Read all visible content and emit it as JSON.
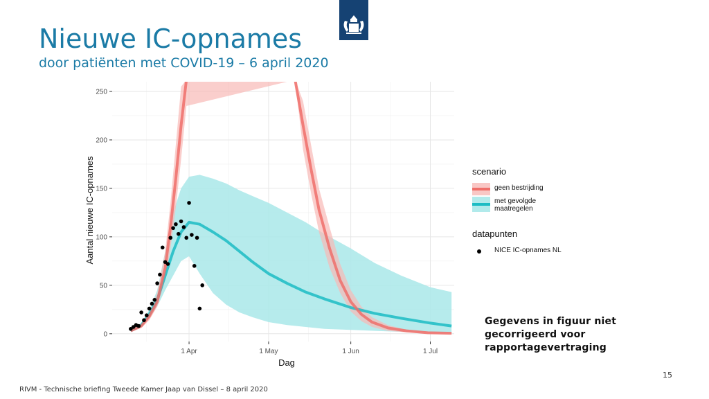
{
  "slide": {
    "title": "Nieuwe IC-opnames",
    "subtitle": "door patiënten met COVID-19 – 6 april 2020",
    "note_lines": [
      "Gegevens in figuur niet",
      "gecorrigeerd voor",
      "rapportagevertraging"
    ],
    "page_number": "15",
    "footer": "RIVM - Technische briefing Tweede Kamer Jaap van Dissel – 8 april 2020",
    "logo_icon": "rijksoverheid-coat-of-arms-icon"
  },
  "colors": {
    "title": "#1b7ba6",
    "logo_bg": "#154273",
    "red_line": "#ef6f6a",
    "red_band": "#f8b9b6",
    "teal_line": "#1cbcc4",
    "teal_band": "#a9e8e9",
    "points": "#000000"
  },
  "chart_data": {
    "type": "line",
    "title": "",
    "xlabel": "Dag",
    "ylabel": "Aantal nieuwe IC-opnames",
    "x_ticks": [
      {
        "label": "1 Apr",
        "date": "2020-04-01"
      },
      {
        "label": "1 May",
        "date": "2020-05-01"
      },
      {
        "label": "1 Jun",
        "date": "2020-06-01"
      },
      {
        "label": "1 Jul",
        "date": "2020-07-01"
      }
    ],
    "y_ticks": [
      0,
      50,
      100,
      150,
      200,
      250
    ],
    "xlim": [
      "2020-03-03",
      "2020-07-10"
    ],
    "ylim": [
      -8,
      260
    ],
    "grid": true,
    "legend_position": "right",
    "legends": [
      {
        "title": "scenario",
        "entries": [
          {
            "label_lines": [
              "geen bestrijding"
            ],
            "series": "geen"
          },
          {
            "label_lines": [
              "met gevolgde",
              "maatregelen"
            ],
            "series": "met"
          }
        ]
      },
      {
        "title": "datapunten",
        "entries": [
          {
            "label_lines": [
              "NICE IC-opnames NL"
            ],
            "series": "points"
          }
        ]
      }
    ],
    "series": [
      {
        "name": "geen bestrijding",
        "key": "geen",
        "x": [
          "2020-03-10",
          "2020-03-14",
          "2020-03-17",
          "2020-03-20",
          "2020-03-23",
          "2020-03-25",
          "2020-03-27",
          "2020-03-29",
          "2020-03-31",
          "2020-05-11",
          "2020-05-14",
          "2020-05-17",
          "2020-05-20",
          "2020-05-24",
          "2020-05-28",
          "2020-06-01",
          "2020-06-05",
          "2020-06-09",
          "2020-06-15",
          "2020-06-22",
          "2020-06-30",
          "2020-07-09"
        ],
        "y": [
          3,
          8,
          18,
          33,
          68,
          110,
          160,
          215,
          262,
          262,
          215,
          170,
          128,
          88,
          55,
          33,
          20,
          12,
          6,
          3,
          1,
          0.5
        ],
        "lower": [
          2,
          6,
          14,
          28,
          55,
          88,
          130,
          180,
          235,
          262,
          190,
          145,
          105,
          68,
          42,
          23,
          13,
          7,
          3,
          1.5,
          0.5,
          0.2
        ],
        "upper": [
          4,
          10,
          22,
          42,
          85,
          135,
          195,
          255,
          262,
          262,
          240,
          195,
          150,
          110,
          72,
          45,
          28,
          17,
          9,
          4,
          2,
          1
        ]
      },
      {
        "name": "met gevolgde maatregelen",
        "key": "met",
        "x": [
          "2020-03-10",
          "2020-03-14",
          "2020-03-17",
          "2020-03-20",
          "2020-03-23",
          "2020-03-26",
          "2020-03-29",
          "2020-04-01",
          "2020-04-05",
          "2020-04-10",
          "2020-04-15",
          "2020-04-20",
          "2020-04-25",
          "2020-05-01",
          "2020-05-08",
          "2020-05-15",
          "2020-05-22",
          "2020-06-01",
          "2020-06-10",
          "2020-06-20",
          "2020-07-01",
          "2020-07-09"
        ],
        "y": [
          3,
          9,
          20,
          35,
          60,
          85,
          105,
          115,
          113,
          105,
          96,
          85,
          74,
          62,
          52,
          43,
          36,
          27,
          21,
          16,
          11,
          8
        ],
        "lower": [
          2,
          7,
          16,
          28,
          45,
          60,
          75,
          80,
          62,
          42,
          30,
          22,
          17,
          12,
          9,
          7,
          5,
          4,
          3,
          2,
          1,
          0.5
        ],
        "upper": [
          4,
          11,
          25,
          45,
          85,
          125,
          150,
          162,
          164,
          160,
          155,
          148,
          142,
          135,
          125,
          115,
          103,
          88,
          73,
          60,
          48,
          43
        ]
      },
      {
        "name": "NICE IC-opnames NL",
        "key": "points",
        "x": [
          "2020-03-10",
          "2020-03-11",
          "2020-03-12",
          "2020-03-13",
          "2020-03-14",
          "2020-03-15",
          "2020-03-16",
          "2020-03-17",
          "2020-03-18",
          "2020-03-19",
          "2020-03-20",
          "2020-03-21",
          "2020-03-22",
          "2020-03-23",
          "2020-03-24",
          "2020-03-25",
          "2020-03-26",
          "2020-03-27",
          "2020-03-28",
          "2020-03-29",
          "2020-03-30",
          "2020-03-31",
          "2020-04-01",
          "2020-04-02",
          "2020-04-03",
          "2020-04-04",
          "2020-04-05",
          "2020-04-06"
        ],
        "y": [
          5,
          7,
          9,
          8,
          22,
          14,
          19,
          26,
          31,
          35,
          52,
          61,
          89,
          74,
          72,
          99,
          109,
          113,
          103,
          116,
          110,
          99,
          135,
          102,
          70,
          99,
          26,
          50
        ]
      }
    ]
  }
}
